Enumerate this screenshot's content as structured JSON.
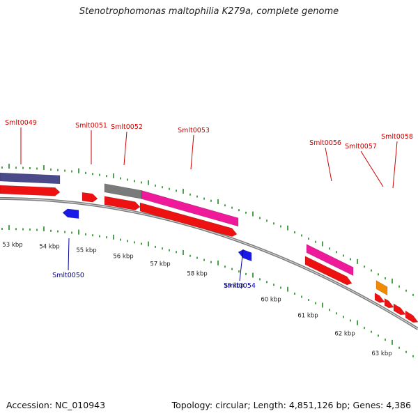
{
  "title": "Stenotrophomonas maltophilia K279a, complete genome",
  "footer": {
    "accession": "Accession: NC_010943",
    "summary": "Topology: circular; Length: 4,851,126 bp; Genes: 4,386"
  },
  "colors": {
    "backbone": "#9a9a9a",
    "cds_forward": "#ee1111",
    "cds_reverse": "#1a1ae6",
    "tick": "#1e8a1e",
    "label_forward": "#cc0000",
    "label_reverse": "#000099",
    "feature_slate": "#4a4a8a",
    "feature_gray": "#7a7a7a",
    "feature_pink": "#ee1a99",
    "feature_orange": "#f08a00"
  },
  "scale_labels": [
    "53 kbp",
    "54 kbp",
    "55 kbp",
    "56 kbp",
    "57 kbp",
    "58 kbp",
    "59 kbp",
    "60 kbp",
    "61 kbp",
    "62 kbp",
    "63 kbp"
  ],
  "gene_labels": {
    "forward": [
      "Smlt0049",
      "Smlt0051",
      "Smlt0052",
      "Smlt0053",
      "Smlt0056",
      "Smlt0057",
      "Smlt0058"
    ],
    "reverse": [
      "Smlt0050",
      "Smlt0054"
    ]
  }
}
